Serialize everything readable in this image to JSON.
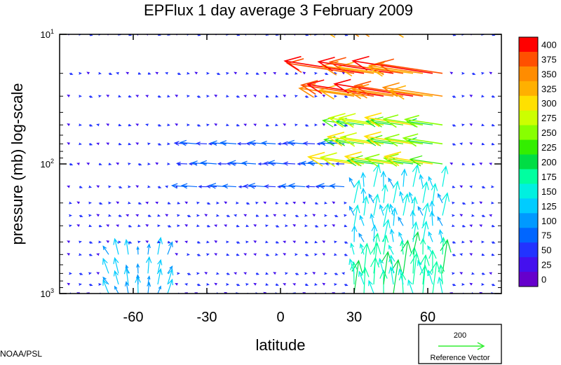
{
  "chart_data": {
    "type": "vector-field",
    "title": "EPFlux  1 day average  3 February  2009",
    "xlabel": "latitude",
    "ylabel": "pressure (mb)  log-scale",
    "x_ticks": [
      -60,
      -30,
      0,
      30,
      60
    ],
    "x_tick_labels": [
      "-60",
      "-30",
      "0",
      "30",
      "60"
    ],
    "xlim": [
      -90,
      90
    ],
    "y_scale": "log",
    "y_inverted": true,
    "ylim": [
      1000,
      10
    ],
    "y_ticks": [
      {
        "value": 10,
        "base": "10",
        "exp": "1"
      },
      {
        "value": 100,
        "base": "10",
        "exp": "2"
      },
      {
        "value": 1000,
        "base": "10",
        "exp": "3"
      }
    ],
    "pressure_levels": [
      1000,
      850,
      700,
      500,
      400,
      300,
      250,
      200,
      150,
      100,
      70,
      50,
      30,
      20,
      10
    ],
    "colorbar": {
      "labels": [
        "400",
        "375",
        "350",
        "325",
        "300",
        "275",
        "250",
        "225",
        "200",
        "175",
        "150",
        "125",
        "100",
        "75",
        "50",
        "25",
        "0"
      ],
      "colors": [
        "#ff0000",
        "#ff5000",
        "#ff8c00",
        "#ffb000",
        "#ffe000",
        "#ccff00",
        "#88ff00",
        "#33ee00",
        "#00dd44",
        "#00ffa0",
        "#00f0e0",
        "#00ccff",
        "#0099ff",
        "#0066ff",
        "#2233ff",
        "#4410ee",
        "#6600cc"
      ]
    },
    "reference_vector": {
      "value": "200",
      "label": "Reference Vector",
      "color": "#33ee33"
    }
  },
  "credit": "NOAA/PSL"
}
